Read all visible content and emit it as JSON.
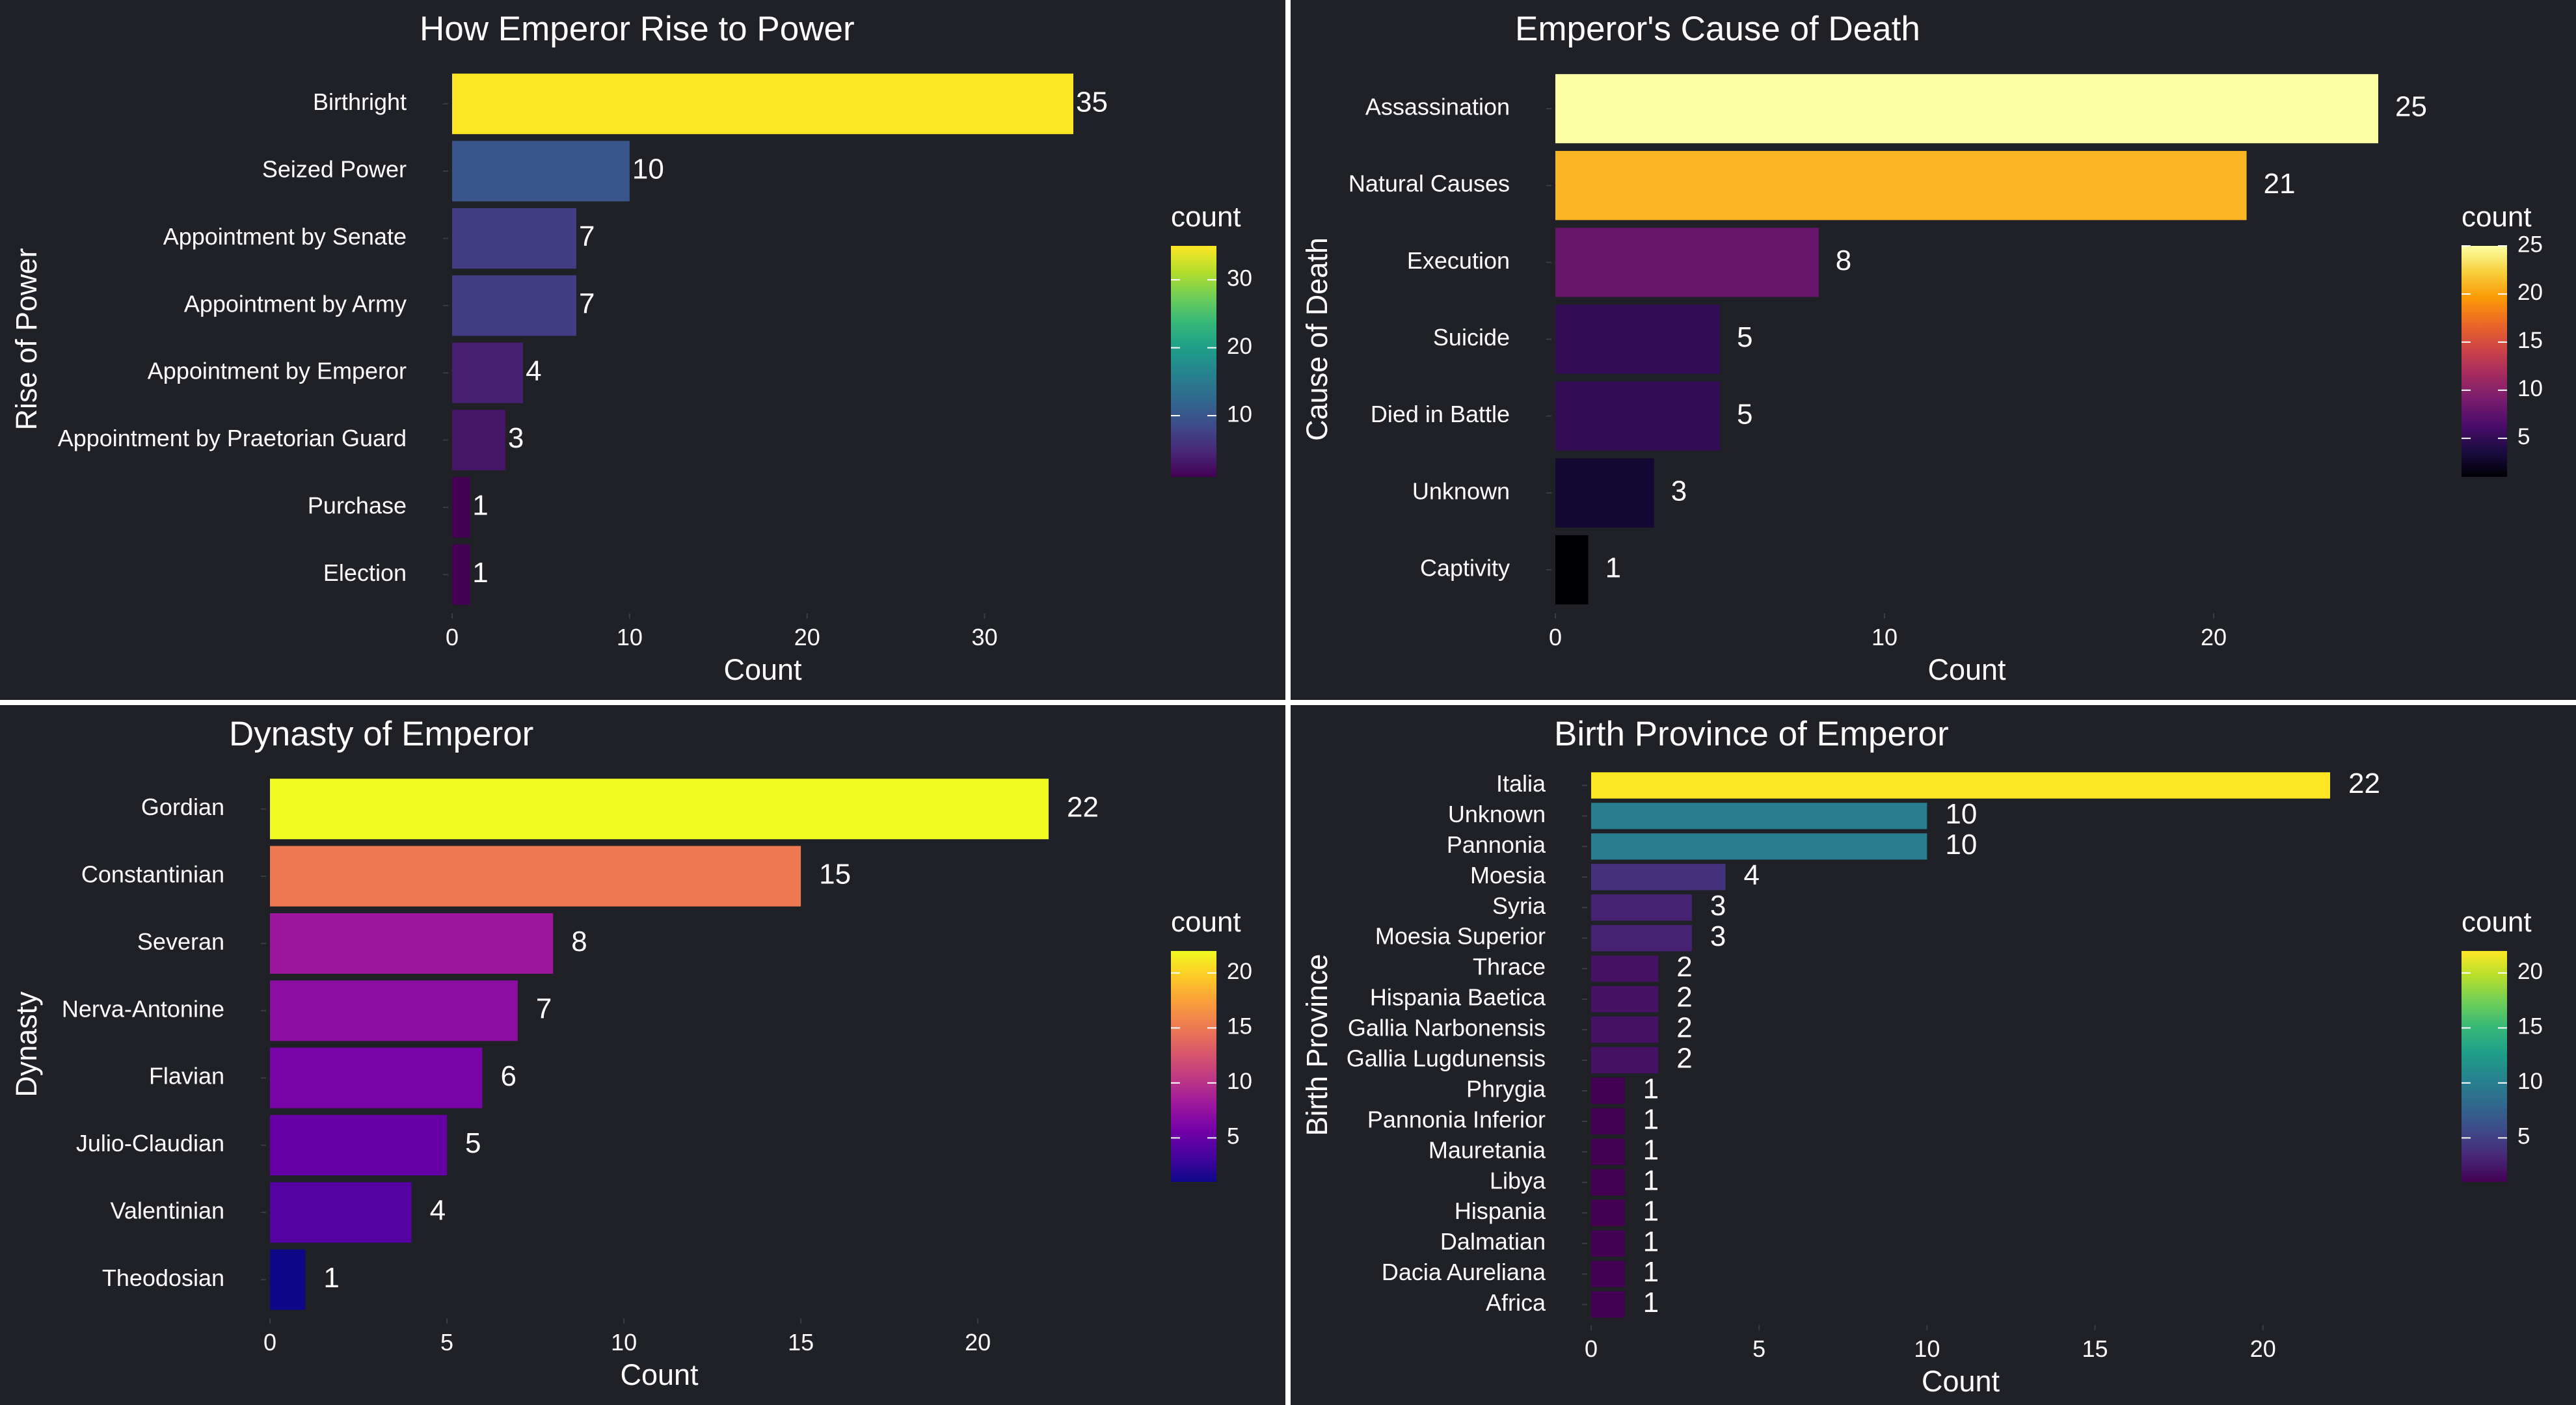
{
  "chart_data": [
    {
      "type": "bar",
      "orientation": "horizontal",
      "title": "How Emperor Rise to Power",
      "xlabel": "Count",
      "ylabel": "Rise of Power",
      "categories": [
        "Birthright",
        "Seized Power",
        "Appointment by Senate",
        "Appointment by Army",
        "Appointment by Emperor",
        "Appointment by Praetorian Guard",
        "Purchase",
        "Election"
      ],
      "values": [
        35,
        10,
        7,
        7,
        4,
        3,
        1,
        1
      ],
      "xlim": [
        0,
        35
      ],
      "xticks": [
        0,
        10,
        20,
        30
      ],
      "grid": false,
      "legend": {
        "title": "count",
        "position": "right",
        "colormap": "viridis",
        "range": [
          1,
          35
        ],
        "ticks": [
          10,
          20,
          30
        ]
      }
    },
    {
      "type": "bar",
      "orientation": "horizontal",
      "title": "Emperor's Cause of Death",
      "xlabel": "Count",
      "ylabel": "Cause of Death",
      "categories": [
        "Assassination",
        "Natural Causes",
        "Execution",
        "Suicide",
        "Died in Battle",
        "Unknown",
        "Captivity"
      ],
      "values": [
        25,
        21,
        8,
        5,
        5,
        3,
        1
      ],
      "xlim": [
        0,
        25
      ],
      "xticks": [
        0,
        10,
        20
      ],
      "grid": false,
      "legend": {
        "title": "count",
        "position": "right",
        "colormap": "inferno",
        "range": [
          1,
          25
        ],
        "ticks": [
          5,
          10,
          15,
          20,
          25
        ]
      }
    },
    {
      "type": "bar",
      "orientation": "horizontal",
      "title": "Dynasty of Emperor",
      "xlabel": "Count",
      "ylabel": "Dynasty",
      "categories": [
        "Gordian",
        "Constantinian",
        "Severan",
        "Nerva-Antonine",
        "Flavian",
        "Julio-Claudian",
        "Valentinian",
        "Theodosian"
      ],
      "values": [
        22,
        15,
        8,
        7,
        6,
        5,
        4,
        1
      ],
      "xlim": [
        0,
        22
      ],
      "xticks": [
        0,
        5,
        10,
        15,
        20
      ],
      "grid": false,
      "legend": {
        "title": "count",
        "position": "right",
        "colormap": "plasma",
        "range": [
          1,
          22
        ],
        "ticks": [
          5,
          10,
          15,
          20
        ]
      }
    },
    {
      "type": "bar",
      "orientation": "horizontal",
      "title": "Birth Province of Emperor",
      "xlabel": "Count",
      "ylabel": "Birth Province",
      "categories": [
        "Italia",
        "Unknown",
        "Pannonia",
        "Moesia",
        "Syria",
        "Moesia Superior",
        "Thrace",
        "Hispania Baetica",
        "Gallia Narbonensis",
        "Gallia Lugdunensis",
        "Phrygia",
        "Pannonia Inferior",
        "Mauretania",
        "Libya",
        "Hispania",
        "Dalmatian",
        "Dacia Aureliana",
        "Africa"
      ],
      "values": [
        22,
        10,
        10,
        4,
        3,
        3,
        2,
        2,
        2,
        2,
        1,
        1,
        1,
        1,
        1,
        1,
        1,
        1
      ],
      "xlim": [
        0,
        22
      ],
      "xticks": [
        0,
        5,
        10,
        15,
        20
      ],
      "grid": false,
      "legend": {
        "title": "count",
        "position": "right",
        "colormap": "viridis",
        "range": [
          1,
          22
        ],
        "ticks": [
          5,
          10,
          15,
          20
        ]
      }
    }
  ]
}
